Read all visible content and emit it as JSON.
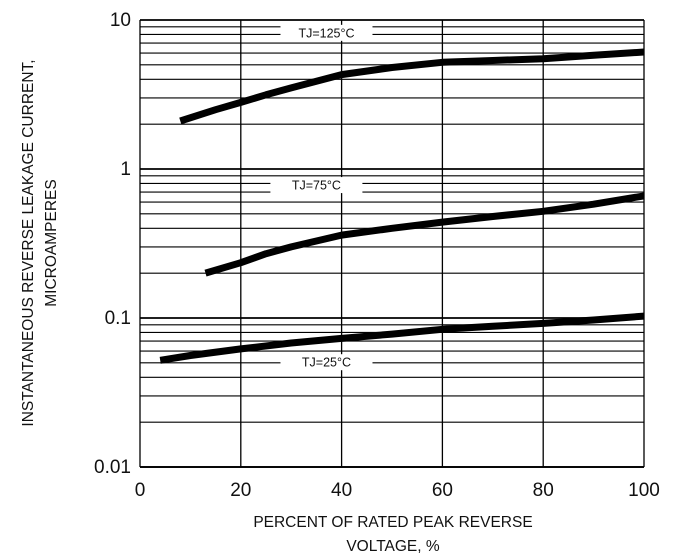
{
  "chart_data": {
    "type": "line",
    "title": "",
    "xlabel": [
      "PERCENT OF RATED PEAK REVERSE",
      "VOLTAGE, %"
    ],
    "ylabel": [
      "INSTANTANEOUS REVERSE LEAKAGE CURRENT,",
      "MICROAMPERES"
    ],
    "x_scale": "linear",
    "y_scale": "log",
    "xlim": [
      0,
      100
    ],
    "ylim": [
      0.01,
      10
    ],
    "x_ticks": [
      0,
      20,
      40,
      60,
      80,
      100
    ],
    "x_tick_labels": [
      "0",
      "20",
      "40",
      "60",
      "80",
      "100"
    ],
    "y_ticks": [
      0.01,
      0.1,
      1,
      10
    ],
    "y_tick_labels": [
      "0.01",
      "0.1",
      "1",
      "10"
    ],
    "grid": true,
    "colors": {
      "line": "#000000",
      "grid": "#000000",
      "background": "#ffffff"
    },
    "series": [
      {
        "name": "TJ=125°C",
        "x": [
          8,
          15,
          20,
          25,
          30,
          40,
          50,
          60,
          70,
          80,
          90,
          100
        ],
        "y": [
          2.1,
          2.5,
          2.8,
          3.15,
          3.5,
          4.3,
          4.8,
          5.2,
          5.35,
          5.5,
          5.8,
          6.1
        ]
      },
      {
        "name": "TJ=75°C",
        "x": [
          13,
          20,
          25,
          30,
          40,
          50,
          60,
          70,
          80,
          90,
          100
        ],
        "y": [
          0.2,
          0.235,
          0.27,
          0.3,
          0.36,
          0.4,
          0.44,
          0.48,
          0.52,
          0.58,
          0.66
        ]
      },
      {
        "name": "TJ=25°C",
        "x": [
          4,
          10,
          20,
          30,
          40,
          50,
          60,
          70,
          80,
          90,
          100
        ],
        "y": [
          0.052,
          0.056,
          0.062,
          0.068,
          0.073,
          0.078,
          0.084,
          0.088,
          0.092,
          0.097,
          0.103
        ]
      }
    ],
    "series_label_positions": [
      {
        "label": "TJ=125°C",
        "x": 37,
        "y": 8.2
      },
      {
        "label": "TJ=75°C",
        "x": 35,
        "y": 0.78
      },
      {
        "label": "TJ=25°C",
        "x": 37,
        "y": 0.0505
      }
    ]
  }
}
